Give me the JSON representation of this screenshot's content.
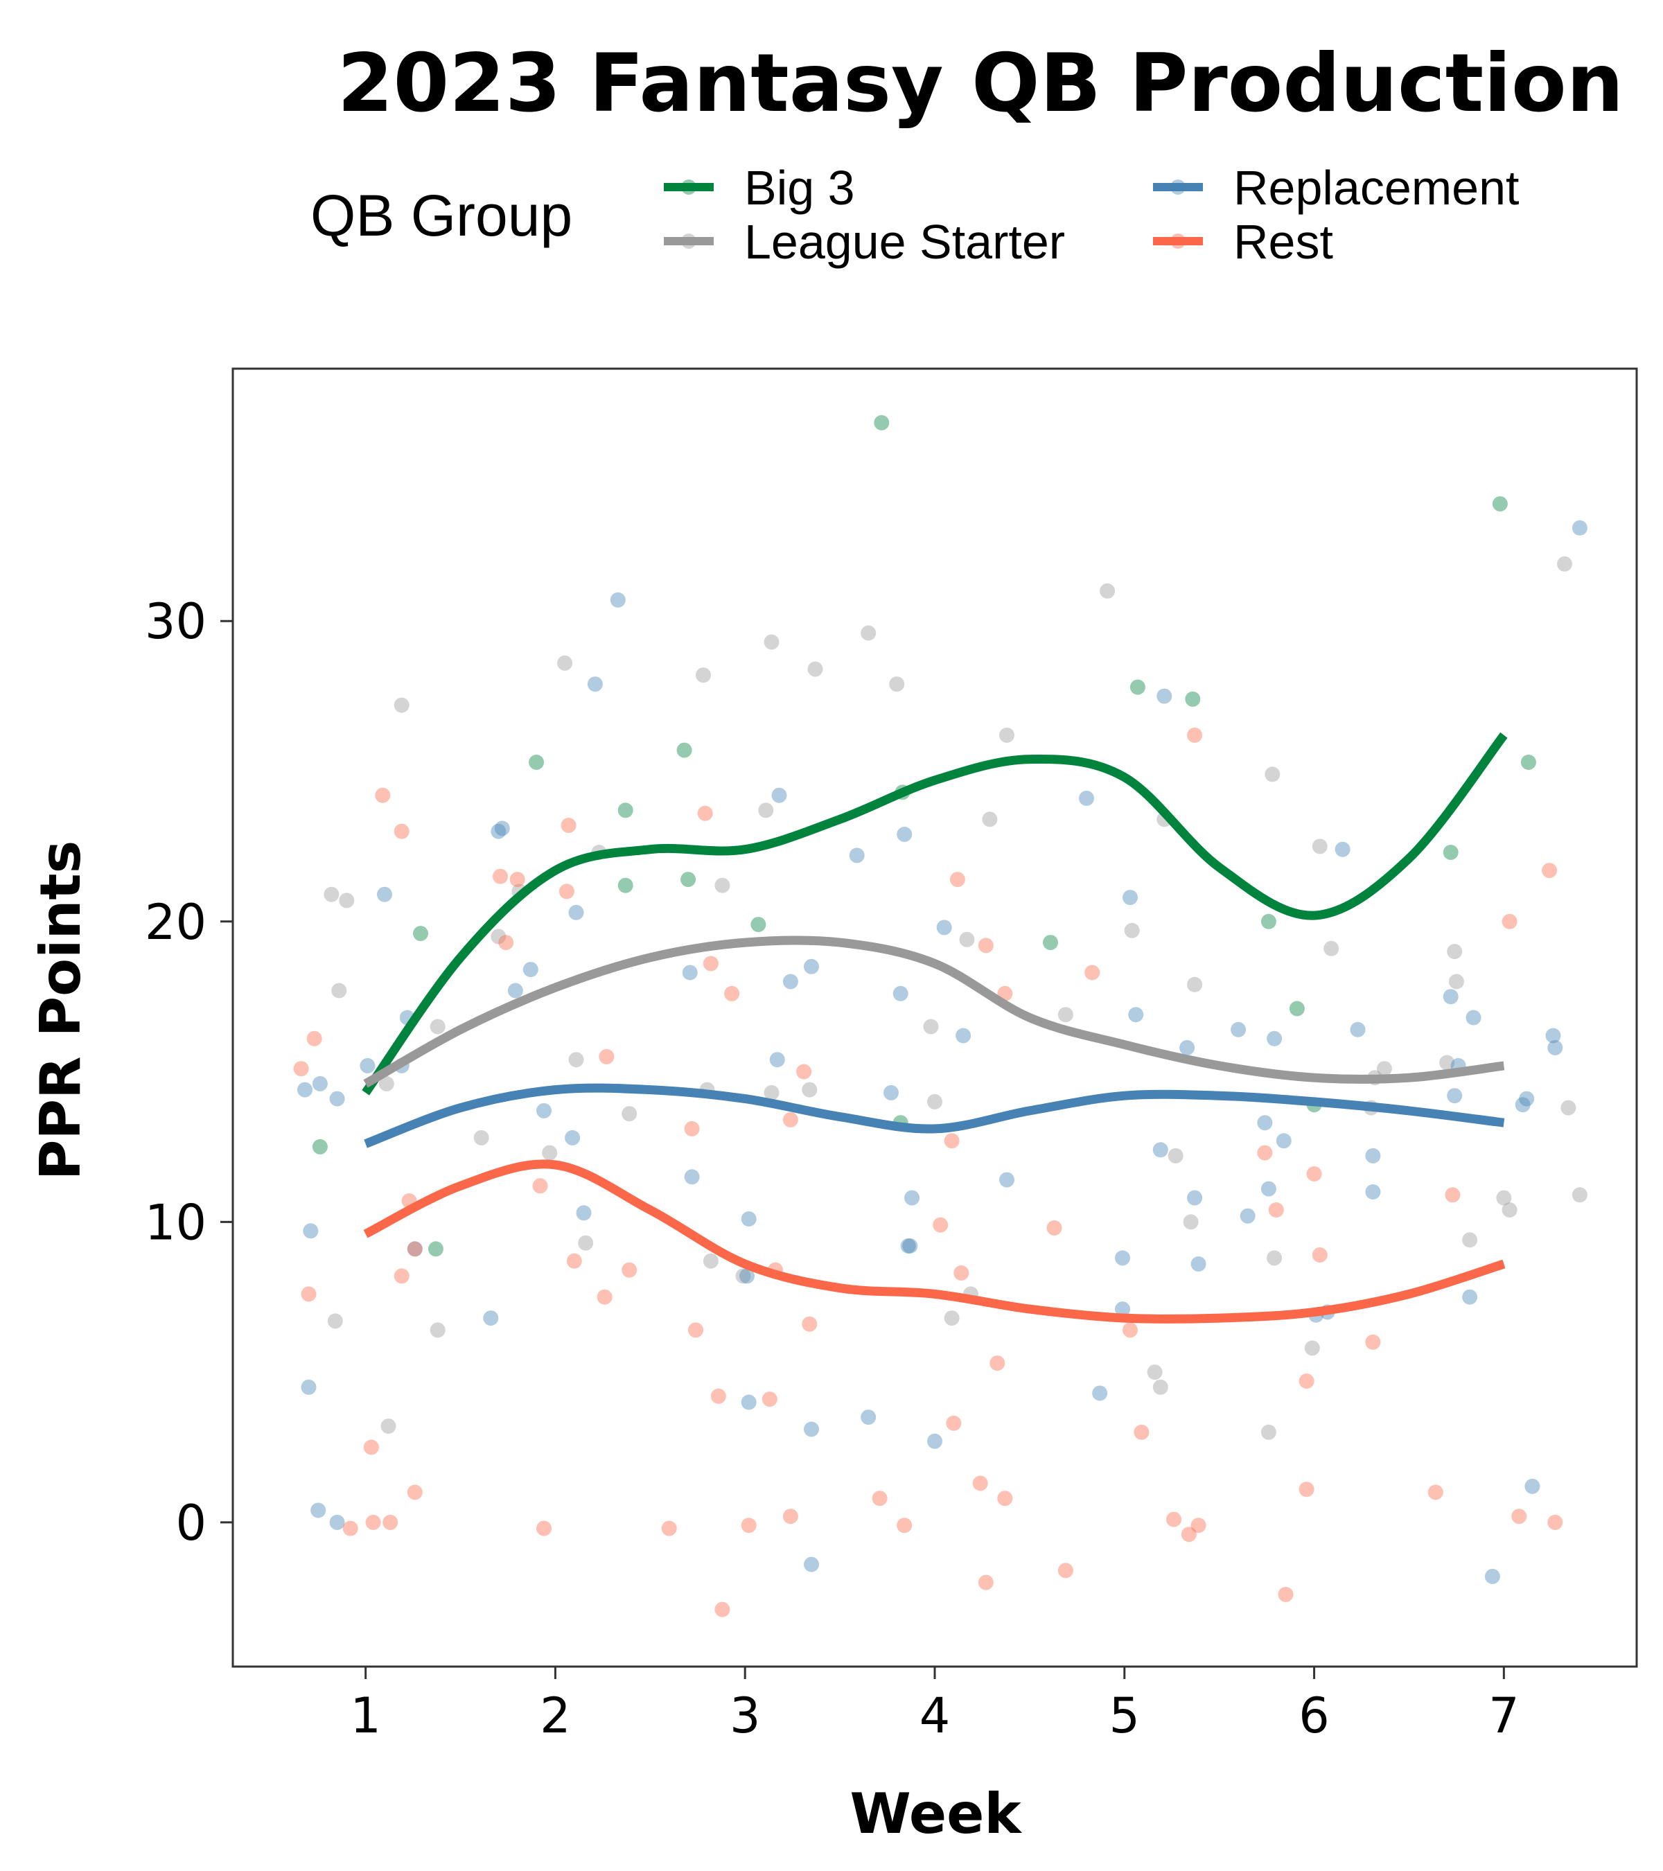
{
  "chart_data": {
    "type": "scatter",
    "title": "2023 Fantasy QB Production",
    "xlabel": "Week",
    "ylabel": "PPR Points",
    "xlim": [
      0.3,
      7.7
    ],
    "ylim": [
      -4.8,
      38.4
    ],
    "x_ticks": [
      1,
      2,
      3,
      4,
      5,
      6,
      7
    ],
    "y_ticks": [
      0,
      10,
      20,
      30
    ],
    "grid": false,
    "legend": {
      "title": "QB Group",
      "position": "top"
    },
    "series": [
      {
        "name": "Big 3",
        "color": "#00843d",
        "points": [
          [
            0.76,
            12.5
          ],
          [
            1.37,
            9.1
          ],
          [
            1.29,
            19.6
          ],
          [
            1.9,
            25.3
          ],
          [
            2.37,
            21.2
          ],
          [
            2.37,
            23.7
          ],
          [
            2.68,
            25.7
          ],
          [
            2.7,
            21.4
          ],
          [
            3.07,
            19.9
          ],
          [
            3.72,
            36.6
          ],
          [
            3.82,
            13.3
          ],
          [
            3.83,
            24.3
          ],
          [
            4.61,
            19.3
          ],
          [
            5.07,
            27.8
          ],
          [
            5.36,
            27.4
          ],
          [
            5.76,
            20
          ],
          [
            5.91,
            17.1
          ],
          [
            6.0,
            13.9
          ],
          [
            6.72,
            22.3
          ],
          [
            6.98,
            33.9
          ],
          [
            7.13,
            25.3
          ]
        ],
        "trend_x": [
          1,
          1.5,
          2,
          2.5,
          3,
          3.5,
          4,
          4.5,
          5,
          5.5,
          6,
          6.5,
          7
        ],
        "trend_y": [
          14.3,
          18.8,
          21.7,
          22.4,
          22.4,
          23.4,
          24.7,
          25.4,
          24.8,
          21.8,
          20.2,
          22.1,
          26.2
        ]
      },
      {
        "name": "League Starter",
        "color": "#999999",
        "points": [
          [
            0.84,
            6.7
          ],
          [
            0.82,
            20.9
          ],
          [
            0.9,
            20.7
          ],
          [
            0.86,
            17.7
          ],
          [
            1.11,
            14.6
          ],
          [
            1.12,
            3.2
          ],
          [
            1.19,
            27.2
          ],
          [
            1.38,
            16.5
          ],
          [
            1.38,
            6.4
          ],
          [
            1.61,
            12.8
          ],
          [
            1.7,
            19.5
          ],
          [
            1.81,
            21
          ],
          [
            1.97,
            12.3
          ],
          [
            2.05,
            28.6
          ],
          [
            2.11,
            15.4
          ],
          [
            2.16,
            9.3
          ],
          [
            2.23,
            22.3
          ],
          [
            2.39,
            13.6
          ],
          [
            2.78,
            28.2
          ],
          [
            2.8,
            14.4
          ],
          [
            2.82,
            8.7
          ],
          [
            2.88,
            21.2
          ],
          [
            2.99,
            8.2
          ],
          [
            3.11,
            23.7
          ],
          [
            3.14,
            29.3
          ],
          [
            3.14,
            14.3
          ],
          [
            3.34,
            14.4
          ],
          [
            3.37,
            28.4
          ],
          [
            3.65,
            29.6
          ],
          [
            3.8,
            27.9
          ],
          [
            3.98,
            16.5
          ],
          [
            4.0,
            14
          ],
          [
            4.09,
            6.8
          ],
          [
            4.17,
            19.4
          ],
          [
            4.19,
            7.6
          ],
          [
            4.29,
            23.4
          ],
          [
            4.38,
            26.2
          ],
          [
            4.69,
            16.9
          ],
          [
            4.91,
            31
          ],
          [
            5.04,
            19.7
          ],
          [
            5.16,
            5
          ],
          [
            5.19,
            4.5
          ],
          [
            5.21,
            23.4
          ],
          [
            5.27,
            12.2
          ],
          [
            5.35,
            10
          ],
          [
            5.37,
            17.9
          ],
          [
            5.76,
            3
          ],
          [
            5.78,
            24.9
          ],
          [
            5.79,
            8.8
          ],
          [
            5.99,
            5.8
          ],
          [
            6.03,
            22.5
          ],
          [
            6.09,
            19.1
          ],
          [
            6.3,
            13.8
          ],
          [
            6.32,
            14.8
          ],
          [
            6.37,
            15.1
          ],
          [
            6.7,
            15.3
          ],
          [
            6.74,
            19
          ],
          [
            6.75,
            18
          ],
          [
            6.82,
            9.4
          ],
          [
            7.0,
            10.8
          ],
          [
            7.03,
            10.4
          ],
          [
            7.32,
            31.9
          ],
          [
            7.34,
            13.8
          ],
          [
            7.4,
            10.9
          ]
        ],
        "trend_x": [
          1,
          1.5,
          2,
          2.5,
          3,
          3.5,
          4,
          4.5,
          5,
          5.5,
          6,
          6.5,
          7
        ],
        "trend_y": [
          14.6,
          16.4,
          17.8,
          18.8,
          19.3,
          19.3,
          18.6,
          16.8,
          15.9,
          15.2,
          14.8,
          14.8,
          15.2
        ]
      },
      {
        "name": "Replacement",
        "color": "#4682b4",
        "points": [
          [
            0.68,
            14.4
          ],
          [
            0.7,
            4.5
          ],
          [
            0.71,
            9.7
          ],
          [
            0.76,
            14.6
          ],
          [
            0.75,
            0.4
          ],
          [
            0.85,
            14.1
          ],
          [
            0.85,
            0
          ],
          [
            1.01,
            15.2
          ],
          [
            1.1,
            20.9
          ],
          [
            1.19,
            15.2
          ],
          [
            1.22,
            16.8
          ],
          [
            1.26,
            9.1
          ],
          [
            1.66,
            6.8
          ],
          [
            1.7,
            23
          ],
          [
            1.72,
            23.1
          ],
          [
            1.79,
            17.7
          ],
          [
            1.87,
            18.4
          ],
          [
            1.94,
            13.7
          ],
          [
            2.09,
            12.8
          ],
          [
            2.11,
            20.3
          ],
          [
            2.15,
            10.3
          ],
          [
            2.21,
            27.9
          ],
          [
            2.33,
            30.7
          ],
          [
            2.71,
            18.3
          ],
          [
            2.72,
            11.5
          ],
          [
            3.02,
            10.1
          ],
          [
            3.01,
            8.2
          ],
          [
            3.02,
            4
          ],
          [
            3.17,
            15.4
          ],
          [
            3.18,
            24.2
          ],
          [
            3.24,
            18
          ],
          [
            3.35,
            18.5
          ],
          [
            3.35,
            3.1
          ],
          [
            3.35,
            -1.4
          ],
          [
            3.59,
            22.2
          ],
          [
            3.65,
            3.5
          ],
          [
            3.77,
            14.3
          ],
          [
            3.82,
            17.6
          ],
          [
            3.84,
            22.9
          ],
          [
            3.86,
            9.2
          ],
          [
            3.87,
            9.2
          ],
          [
            3.88,
            10.8
          ],
          [
            4.0,
            2.7
          ],
          [
            4.05,
            19.8
          ],
          [
            4.15,
            16.2
          ],
          [
            4.38,
            11.4
          ],
          [
            4.8,
            24.1
          ],
          [
            4.87,
            4.3
          ],
          [
            4.99,
            8.8
          ],
          [
            4.99,
            7.1
          ],
          [
            5.03,
            20.8
          ],
          [
            5.06,
            16.9
          ],
          [
            5.19,
            12.4
          ],
          [
            5.21,
            27.5
          ],
          [
            5.33,
            15.8
          ],
          [
            5.37,
            10.8
          ],
          [
            5.39,
            8.6
          ],
          [
            5.6,
            16.4
          ],
          [
            5.65,
            10.2
          ],
          [
            5.74,
            13.3
          ],
          [
            5.76,
            11.1
          ],
          [
            5.79,
            16.1
          ],
          [
            5.84,
            12.7
          ],
          [
            6.01,
            6.9
          ],
          [
            6.07,
            7
          ],
          [
            6.15,
            22.4
          ],
          [
            6.23,
            16.4
          ],
          [
            6.31,
            11
          ],
          [
            6.31,
            12.2
          ],
          [
            6.72,
            17.5
          ],
          [
            6.74,
            14.2
          ],
          [
            6.76,
            15.2
          ],
          [
            6.82,
            7.5
          ],
          [
            6.84,
            16.8
          ],
          [
            6.94,
            -1.8
          ],
          [
            7.1,
            13.9
          ],
          [
            7.12,
            14.1
          ],
          [
            7.15,
            1.2
          ],
          [
            7.26,
            16.2
          ],
          [
            7.27,
            15.8
          ],
          [
            7.4,
            33.1
          ]
        ],
        "trend_x": [
          1,
          1.5,
          2,
          2.5,
          3,
          3.5,
          4,
          4.5,
          5,
          5.5,
          6,
          6.5,
          7
        ],
        "trend_y": [
          12.6,
          13.8,
          14.4,
          14.4,
          14.1,
          13.5,
          13.1,
          13.7,
          14.2,
          14.2,
          14,
          13.7,
          13.3
        ]
      },
      {
        "name": "Rest",
        "color": "#fa6849",
        "points": [
          [
            0.66,
            15.1
          ],
          [
            0.7,
            7.6
          ],
          [
            0.73,
            16.1
          ],
          [
            0.92,
            -0.2
          ],
          [
            1.03,
            2.5
          ],
          [
            1.04,
            0
          ],
          [
            1.09,
            24.2
          ],
          [
            1.13,
            0
          ],
          [
            1.19,
            23
          ],
          [
            1.19,
            8.2
          ],
          [
            1.23,
            10.7
          ],
          [
            1.26,
            9.1
          ],
          [
            1.26,
            1
          ],
          [
            1.71,
            21.5
          ],
          [
            1.74,
            19.3
          ],
          [
            1.8,
            21.4
          ],
          [
            1.92,
            11.2
          ],
          [
            1.94,
            -0.2
          ],
          [
            2.07,
            23.2
          ],
          [
            2.06,
            21
          ],
          [
            2.1,
            8.7
          ],
          [
            2.26,
            7.5
          ],
          [
            2.27,
            15.5
          ],
          [
            2.39,
            8.4
          ],
          [
            2.6,
            -0.2
          ],
          [
            2.72,
            13.1
          ],
          [
            2.74,
            6.4
          ],
          [
            2.79,
            23.6
          ],
          [
            2.82,
            18.6
          ],
          [
            2.86,
            4.2
          ],
          [
            2.88,
            -2.9
          ],
          [
            2.93,
            17.6
          ],
          [
            3.02,
            -0.1
          ],
          [
            3.13,
            4.1
          ],
          [
            3.16,
            8.4
          ],
          [
            3.24,
            13.4
          ],
          [
            3.24,
            0.2
          ],
          [
            3.31,
            15
          ],
          [
            3.34,
            6.6
          ],
          [
            3.71,
            0.8
          ],
          [
            3.84,
            -0.1
          ],
          [
            4.03,
            9.9
          ],
          [
            4.09,
            12.7
          ],
          [
            4.1,
            3.3
          ],
          [
            4.12,
            21.4
          ],
          [
            4.14,
            8.3
          ],
          [
            4.24,
            1.3
          ],
          [
            4.27,
            19.2
          ],
          [
            4.27,
            -2
          ],
          [
            4.33,
            5.3
          ],
          [
            4.37,
            0.8
          ],
          [
            4.37,
            17.6
          ],
          [
            4.63,
            9.8
          ],
          [
            4.69,
            -1.6
          ],
          [
            4.83,
            18.3
          ],
          [
            5.03,
            6.4
          ],
          [
            5.09,
            3
          ],
          [
            5.26,
            0.1
          ],
          [
            5.34,
            -0.4
          ],
          [
            5.37,
            26.2
          ],
          [
            5.39,
            -0.1
          ],
          [
            5.74,
            12.3
          ],
          [
            5.8,
            10.4
          ],
          [
            5.85,
            -2.4
          ],
          [
            5.96,
            4.7
          ],
          [
            5.96,
            1.1
          ],
          [
            6.0,
            11.6
          ],
          [
            6.03,
            8.9
          ],
          [
            6.31,
            6
          ],
          [
            6.64,
            1
          ],
          [
            6.73,
            10.9
          ],
          [
            7.03,
            20
          ],
          [
            7.08,
            0.2
          ],
          [
            7.24,
            21.7
          ],
          [
            7.27,
            0
          ]
        ],
        "trend_x": [
          1,
          1.5,
          2,
          2.5,
          3,
          3.5,
          4,
          4.5,
          5,
          5.5,
          6,
          6.5,
          7
        ],
        "trend_y": [
          9.6,
          11.2,
          11.9,
          10.4,
          8.6,
          7.8,
          7.6,
          7.1,
          6.8,
          6.8,
          7,
          7.6,
          8.6
        ]
      }
    ]
  }
}
